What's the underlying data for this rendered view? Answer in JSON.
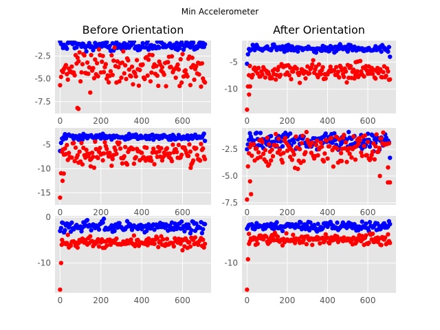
{
  "figure": {
    "suptitle": "Min Accelerometer",
    "colors": {
      "panel_bg": "#E5E5E5",
      "grid": "#FFFFFF",
      "series_blue": "#0000FF",
      "series_red": "#FF0000",
      "tick": "#555555"
    }
  },
  "chart_data": [
    {
      "id": "r0c0",
      "type": "scatter",
      "title": "Before Orientation",
      "xlim": [
        -25,
        740
      ],
      "ylim": [
        -8.8,
        -0.8
      ],
      "xticks": [
        0,
        200,
        400,
        600
      ],
      "yticks": [
        -2.5,
        -5.0,
        -7.5
      ],
      "grid": true,
      "series": [
        {
          "color": "#0000FF",
          "n": 150,
          "base": -1.4,
          "spread": 0.28,
          "start_from": -0.9,
          "end_from": -1.2
        },
        {
          "color": "#FF0000",
          "n": 150,
          "base": -4.0,
          "spread": 1.0,
          "start_from": -5.7,
          "end_from": -5.4,
          "outliers": [
            [
              85,
              -8.2
            ],
            [
              90,
              -8.3
            ]
          ]
        }
      ]
    },
    {
      "id": "r0c1",
      "type": "scatter",
      "title": "After Orientation",
      "xlim": [
        -25,
        740
      ],
      "ylim": [
        -14.5,
        -1.0
      ],
      "xticks": [
        0,
        200,
        400,
        600
      ],
      "yticks": [
        -5,
        -10
      ],
      "grid": true,
      "series": [
        {
          "color": "#0000FF",
          "n": 150,
          "base": -2.5,
          "spread": 0.3,
          "start_from": -5.3,
          "end_from": -4.0
        },
        {
          "color": "#FF0000",
          "n": 150,
          "base": -6.7,
          "spread": 0.8,
          "start_from": -13.8,
          "end_from": -8.2,
          "outliers": [
            [
              10,
              -11.0
            ],
            [
              15,
              -9.5
            ],
            [
              540,
              -5.0
            ],
            [
              550,
              -4.9
            ]
          ]
        }
      ]
    },
    {
      "id": "r1c0",
      "type": "scatter",
      "title": "",
      "xlim": [
        -25,
        740
      ],
      "ylim": [
        -17.5,
        -1.5
      ],
      "xticks": [
        0,
        200,
        400,
        600
      ],
      "yticks": [
        -5,
        -10,
        -15
      ],
      "grid": true,
      "series": [
        {
          "color": "#0000FF",
          "n": 150,
          "base": -3.4,
          "spread": 0.3,
          "start_from": -6.3,
          "end_from": -4.2
        },
        {
          "color": "#FF0000",
          "n": 150,
          "base": -6.8,
          "spread": 1.1,
          "start_from": -16.0,
          "end_from": -8.0,
          "outliers": [
            [
              12,
              -12.5
            ],
            [
              18,
              -11.0
            ],
            [
              150,
              -9.5
            ],
            [
              640,
              -9.8
            ]
          ]
        }
      ]
    },
    {
      "id": "r1c1",
      "type": "scatter",
      "title": "",
      "xlim": [
        -25,
        740
      ],
      "ylim": [
        -7.7,
        -0.5
      ],
      "xticks": [
        0,
        200,
        400,
        600
      ],
      "yticks": [
        -2.5,
        -5.0,
        -7.5
      ],
      "grid": true,
      "series": [
        {
          "color": "#0000FF",
          "n": 150,
          "base": -1.7,
          "spread": 0.4,
          "start_from": -2.5,
          "end_from": -3.3
        },
        {
          "color": "#FF0000",
          "n": 150,
          "base": -2.5,
          "spread": 0.8,
          "start_from": -7.2,
          "end_from": -5.6,
          "outliers": [
            [
              15,
              -5.5
            ],
            [
              20,
              -6.7
            ],
            [
              110,
              -3.9
            ],
            [
              470,
              -3.6
            ],
            [
              660,
              -5.0
            ],
            [
              700,
              -5.6
            ]
          ]
        }
      ]
    },
    {
      "id": "r2c0",
      "type": "scatter",
      "title": "",
      "xlim": [
        -25,
        740
      ],
      "ylim": [
        -16.5,
        0.3
      ],
      "xticks": [
        0,
        200,
        400,
        600
      ],
      "yticks": [
        0,
        -10
      ],
      "grid": true,
      "series": [
        {
          "color": "#0000FF",
          "n": 150,
          "base": -2.0,
          "spread": 0.6,
          "start_from": -3.0,
          "end_from": -1.5
        },
        {
          "color": "#FF0000",
          "n": 150,
          "base": -5.4,
          "spread": 0.6,
          "start_from": -15.8,
          "end_from": -5.8,
          "outliers": [
            [
              8,
              -6.0
            ],
            [
              600,
              -7.2
            ]
          ]
        }
      ]
    },
    {
      "id": "r2c1",
      "type": "scatter",
      "title": "",
      "xlim": [
        -25,
        740
      ],
      "ylim": [
        -16.5,
        0.3
      ],
      "xticks": [
        0,
        200,
        400,
        600
      ],
      "yticks": [
        -10
      ],
      "grid": true,
      "series": [
        {
          "color": "#0000FF",
          "n": 150,
          "base": -2.0,
          "spread": 0.5,
          "start_from": -2.5,
          "end_from": -1.5
        },
        {
          "color": "#FF0000",
          "n": 150,
          "base": -4.8,
          "spread": 0.6,
          "start_from": -15.8,
          "end_from": -5.6,
          "outliers": [
            [
              10,
              -5.8
            ],
            [
              650,
              -5.4
            ]
          ]
        }
      ]
    }
  ]
}
